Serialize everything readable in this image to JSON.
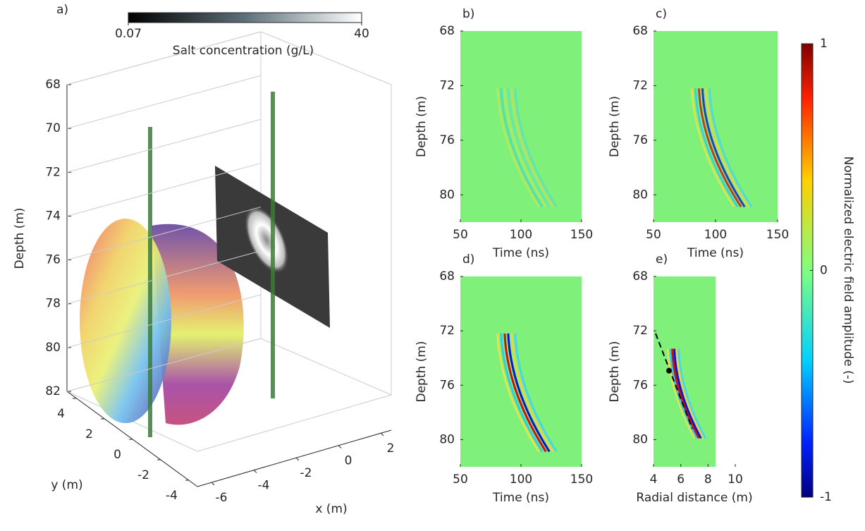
{
  "panel_a": {
    "label": "a)",
    "colorbar": {
      "title": "Salt concentration (g/L)",
      "ticks": [
        0.07,
        40
      ]
    },
    "zlabel": "Depth (m)",
    "zticks": [
      68,
      70,
      72,
      74,
      76,
      78,
      80,
      82
    ],
    "ylabel": "y (m)",
    "yticks": [
      4,
      2,
      0,
      -2,
      -4
    ],
    "xlabel": "x (m)",
    "xticks": [
      -6,
      -4,
      -2,
      0,
      2
    ]
  },
  "panels": [
    {
      "label": "b)",
      "xlabel": "Time (ns)",
      "ylabel": "Depth (m)",
      "xlim": [
        50,
        150
      ],
      "xticks": [
        50,
        100,
        150
      ],
      "ylim": [
        68,
        82
      ],
      "yticks": [
        68,
        72,
        76,
        80
      ]
    },
    {
      "label": "c)",
      "xlabel": "Time (ns)",
      "ylabel": "Depth (m)",
      "xlim": [
        50,
        150
      ],
      "xticks": [
        50,
        100,
        150
      ],
      "ylim": [
        68,
        82
      ],
      "yticks": [
        68,
        72,
        76,
        80
      ]
    },
    {
      "label": "d)",
      "xlabel": "Time (ns)",
      "ylabel": "Depth (m)",
      "xlim": [
        50,
        150
      ],
      "xticks": [
        50,
        100,
        150
      ],
      "ylim": [
        68,
        82
      ],
      "yticks": [
        68,
        72,
        76,
        80
      ]
    },
    {
      "label": "e)",
      "xlabel": "Radial distance (m)",
      "ylabel": "Depth (m)",
      "xlim": [
        4,
        10
      ],
      "xticks": [
        4,
        6,
        8,
        10
      ],
      "ylim": [
        68,
        82
      ],
      "yticks": [
        68,
        72,
        76,
        80
      ]
    }
  ],
  "colorbar": {
    "label": "Normalized electric field amplitude (-)",
    "lim": [
      -1,
      1
    ],
    "ticks": [
      -1,
      0,
      1
    ]
  }
}
